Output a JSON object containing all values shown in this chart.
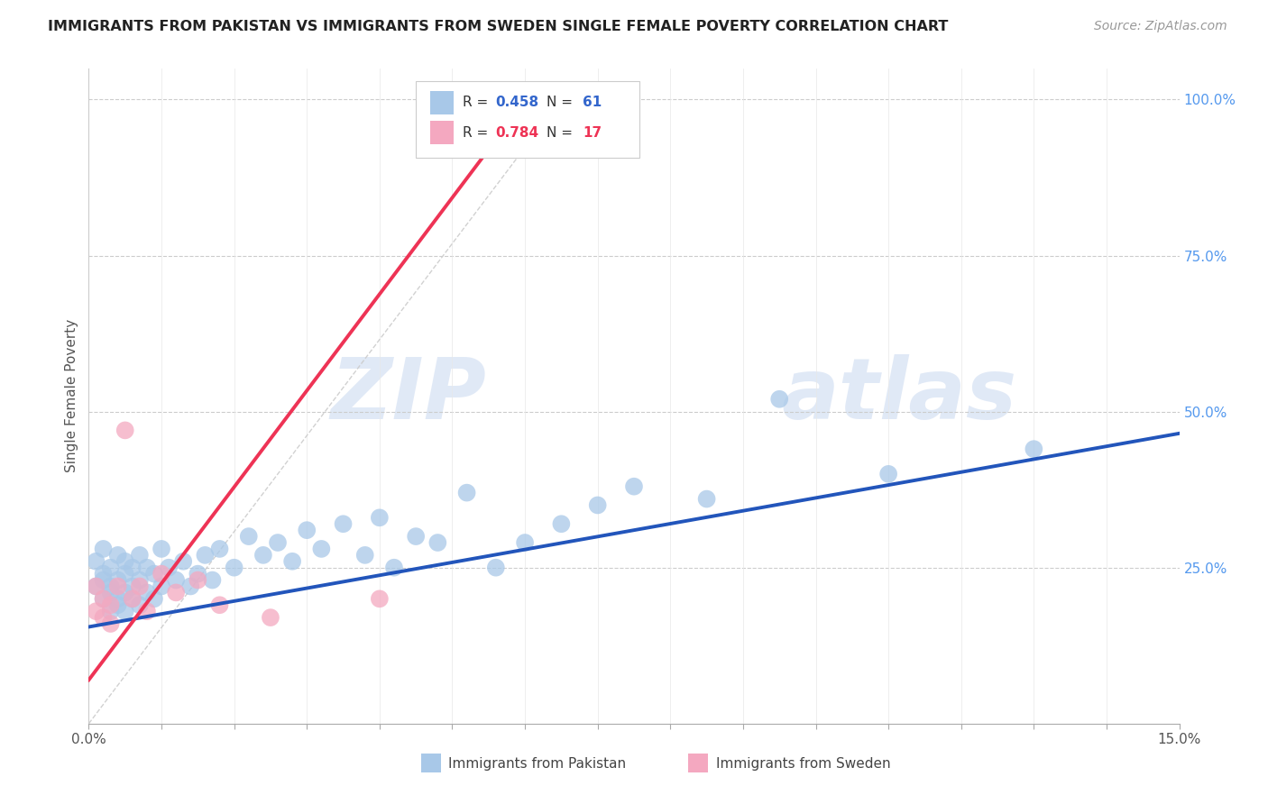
{
  "title": "IMMIGRANTS FROM PAKISTAN VS IMMIGRANTS FROM SWEDEN SINGLE FEMALE POVERTY CORRELATION CHART",
  "source": "Source: ZipAtlas.com",
  "ylabel": "Single Female Poverty",
  "legend_label_1": "Immigrants from Pakistan",
  "legend_label_2": "Immigrants from Sweden",
  "R1": 0.458,
  "N1": 61,
  "R2": 0.784,
  "N2": 17,
  "xlim": [
    0.0,
    0.15
  ],
  "ylim": [
    0.0,
    1.05
  ],
  "color_pakistan": "#a8c8e8",
  "color_sweden": "#f4a8c0",
  "line_color_pakistan": "#2255bb",
  "line_color_sweden": "#ee3355",
  "background_color": "#ffffff",
  "watermark_text": "ZIPatlas",
  "blue_line_x": [
    0.0,
    0.15
  ],
  "blue_line_y": [
    0.155,
    0.465
  ],
  "pink_line_x": [
    0.0,
    0.055
  ],
  "pink_line_y": [
    0.07,
    0.92
  ],
  "diag_line_x": [
    0.0,
    0.065
  ],
  "diag_line_y": [
    0.0,
    1.0
  ],
  "pakistan_x": [
    0.001,
    0.001,
    0.002,
    0.002,
    0.002,
    0.002,
    0.003,
    0.003,
    0.003,
    0.003,
    0.004,
    0.004,
    0.004,
    0.004,
    0.005,
    0.005,
    0.005,
    0.005,
    0.006,
    0.006,
    0.006,
    0.007,
    0.007,
    0.007,
    0.008,
    0.008,
    0.009,
    0.009,
    0.01,
    0.01,
    0.011,
    0.012,
    0.013,
    0.014,
    0.015,
    0.016,
    0.017,
    0.018,
    0.02,
    0.022,
    0.024,
    0.026,
    0.028,
    0.03,
    0.032,
    0.035,
    0.038,
    0.04,
    0.042,
    0.045,
    0.048,
    0.052,
    0.056,
    0.06,
    0.065,
    0.07,
    0.075,
    0.085,
    0.095,
    0.11,
    0.13
  ],
  "pakistan_y": [
    0.22,
    0.26,
    0.2,
    0.24,
    0.23,
    0.28,
    0.18,
    0.21,
    0.25,
    0.22,
    0.19,
    0.23,
    0.27,
    0.2,
    0.21,
    0.24,
    0.18,
    0.26,
    0.2,
    0.22,
    0.25,
    0.19,
    0.23,
    0.27,
    0.21,
    0.25,
    0.2,
    0.24,
    0.22,
    0.28,
    0.25,
    0.23,
    0.26,
    0.22,
    0.24,
    0.27,
    0.23,
    0.28,
    0.25,
    0.3,
    0.27,
    0.29,
    0.26,
    0.31,
    0.28,
    0.32,
    0.27,
    0.33,
    0.25,
    0.3,
    0.29,
    0.37,
    0.25,
    0.29,
    0.32,
    0.35,
    0.38,
    0.36,
    0.52,
    0.4,
    0.44
  ],
  "sweden_x": [
    0.001,
    0.001,
    0.002,
    0.002,
    0.003,
    0.003,
    0.004,
    0.005,
    0.006,
    0.007,
    0.008,
    0.01,
    0.012,
    0.015,
    0.018,
    0.025,
    0.04
  ],
  "sweden_y": [
    0.18,
    0.22,
    0.17,
    0.2,
    0.19,
    0.16,
    0.22,
    0.47,
    0.2,
    0.22,
    0.18,
    0.24,
    0.21,
    0.23,
    0.19,
    0.17,
    0.2
  ]
}
